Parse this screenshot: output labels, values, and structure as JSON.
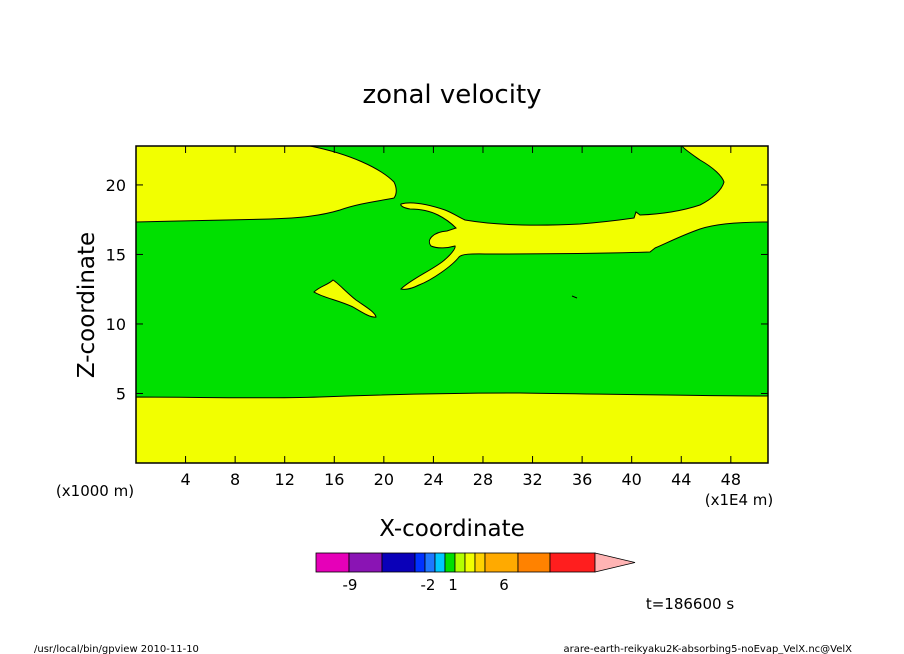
{
  "chart_data": {
    "type": "heatmap",
    "title": "zonal velocity",
    "xlabel": "X-coordinate",
    "ylabel": "Z-coordinate",
    "x_unit": "(x1E4 m)",
    "y_unit": "(x1000 m)",
    "x_ticks": [
      4,
      8,
      12,
      16,
      20,
      24,
      28,
      32,
      36,
      40,
      44,
      48
    ],
    "y_ticks": [
      5,
      10,
      15,
      20
    ],
    "xlim": [
      0,
      51
    ],
    "ylim": [
      0,
      22.8
    ],
    "grid": false,
    "fields": [
      {
        "level": "1 to 2",
        "color": "#f2ff00",
        "note": "yellow region: bottom layer z<5, upper-left lobe, upper jet"
      },
      {
        "level": "-1 to 1",
        "color": "#00e000",
        "note": "green region: background"
      }
    ],
    "colorbar": {
      "colors": [
        "#e600b8",
        "#8a14b4",
        "#0a00b8",
        "#0032ff",
        "#1e78ff",
        "#00c8ff",
        "#00e000",
        "#b4ff00",
        "#f2ff00",
        "#ffd200",
        "#ffaa00",
        "#ff8200",
        "#ff1e1e",
        "#ff7878",
        "#ffb4b4"
      ],
      "labels": [
        "-9",
        "-2",
        "1",
        "6"
      ]
    },
    "time_label": "t=186600 s"
  },
  "footer": {
    "left": "/usr/local/bin/gpview  2010-11-10",
    "right": "arare-earth-reikyaku2K-absorbing5-noEvap_VelX.nc@VelX"
  }
}
